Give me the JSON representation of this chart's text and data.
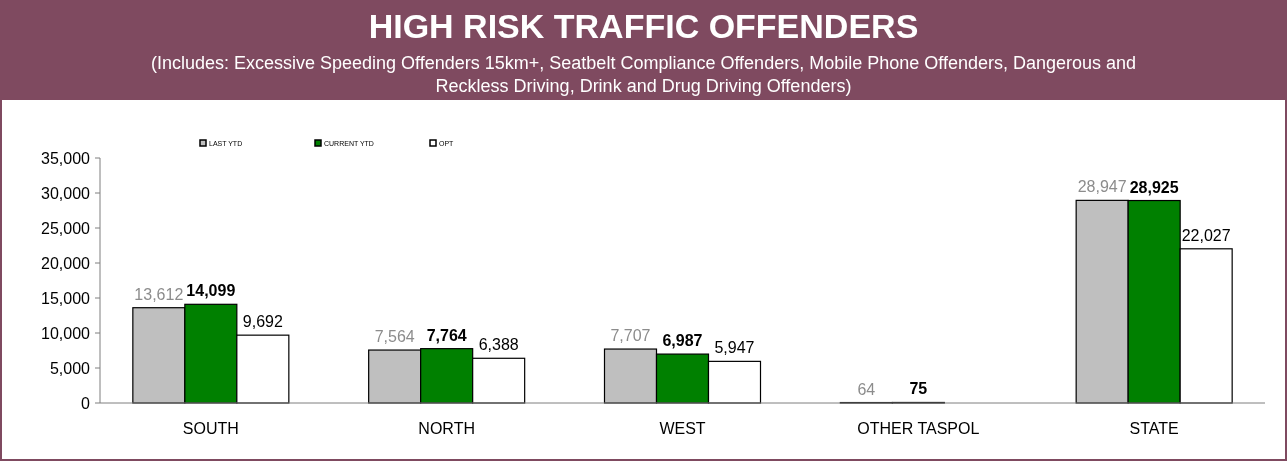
{
  "chart_data": {
    "type": "bar",
    "title": "HIGH RISK TRAFFIC OFFENDERS",
    "subtitle": "(Includes: Excessive Speeding Offenders 15km+, Seatbelt Compliance Offenders, Mobile Phone Offenders, Dangerous and Reckless Driving, Drink and Drug Driving Offenders)",
    "categories": [
      "SOUTH",
      "NORTH",
      "WEST",
      "OTHER TASPOL",
      "STATE"
    ],
    "series": [
      {
        "name": "LAST YTD",
        "color": "#bfbfbf",
        "values": [
          13612,
          7564,
          7707,
          64,
          28947
        ],
        "value_labels": [
          "13,612",
          "7,564",
          "7,707",
          "64",
          "28,947"
        ]
      },
      {
        "name": "CURRENT YTD",
        "color": "#008000",
        "values": [
          14099,
          7764,
          6987,
          75,
          28925
        ],
        "value_labels": [
          "14,099",
          "7,764",
          "6,987",
          "75",
          "28,925"
        ]
      },
      {
        "name": "OPT",
        "color": "#ffffff",
        "values": [
          9692,
          6388,
          5947,
          null,
          22027
        ],
        "value_labels": [
          "9,692",
          "6,388",
          "5,947",
          null,
          "22,027"
        ]
      }
    ],
    "ylim": [
      0,
      35000
    ],
    "yticks": [
      {
        "value": 0,
        "label": "0"
      },
      {
        "value": 5000,
        "label": "5,000"
      },
      {
        "value": 10000,
        "label": "10,000"
      },
      {
        "value": 15000,
        "label": "15,000"
      },
      {
        "value": 20000,
        "label": "20,000"
      },
      {
        "value": 25000,
        "label": "25,000"
      },
      {
        "value": 30000,
        "label": "30,000"
      },
      {
        "value": 35000,
        "label": "35,000"
      }
    ],
    "legend": "top left",
    "grid": false
  }
}
